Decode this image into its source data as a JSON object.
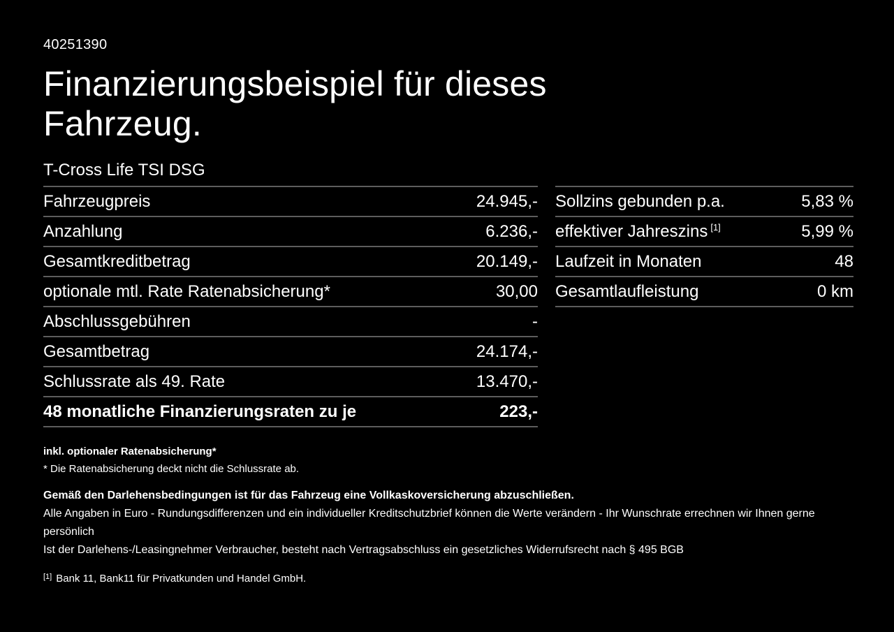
{
  "page": {
    "listing_id": "40251390",
    "title": "Finanzierungsbeispiel für dieses Fahrzeug.",
    "vehicle_model": "T-Cross Life TSI DSG"
  },
  "left_table": {
    "rows": [
      {
        "label": "Fahrzeugpreis",
        "value": "24.945,-"
      },
      {
        "label": "Anzahlung",
        "value": "6.236,-"
      },
      {
        "label": "Gesamtkreditbetrag",
        "value": "20.149,-"
      },
      {
        "label": "optionale mtl. Rate Ratenabsicherung*",
        "value": "30,00"
      },
      {
        "label": "Abschlussgebühren",
        "value": "-"
      },
      {
        "label": "Gesamtbetrag",
        "value": "24.174,-"
      },
      {
        "label": "Schlussrate als 49. Rate",
        "value": "13.470,-"
      },
      {
        "label": "48 monatliche Finanzierungsraten zu je",
        "value": "223,-"
      }
    ]
  },
  "right_table": {
    "rows": [
      {
        "label": "Sollzins gebunden p.a.",
        "value": "5,83 %"
      },
      {
        "label": "effektiver Jahreszins",
        "sup": "[1]",
        "value": "5,99 %"
      },
      {
        "label": "Laufzeit in Monaten",
        "value": "48"
      },
      {
        "label": "Gesamtlaufleistung",
        "value": "0 km"
      }
    ]
  },
  "footnotes": {
    "rate_protection_bold": "inkl. optionaler Ratenabsicherung*",
    "rate_protection_note": "* Die Ratenabsicherung deckt nicht die Schlussrate ab.",
    "insurance_requirement": "Gemäß den Darlehensbedingungen ist für das Fahrzeug eine Vollkaskoversicherung abzuschließen.",
    "disclaimer_line1": "Alle Angaben in Euro - Rundungsdifferenzen und ein individueller Kreditschutzbrief können die Werte verändern - Ihr Wunschrate errechnen wir Ihnen gerne persönlich",
    "disclaimer_line2": "Ist der Darlehens-/Leasingnehmer Verbraucher, besteht nach Vertragsabschluss ein gesetzliches Widerrufsrecht nach § 495 BGB",
    "bank_ref_marker": "[1]",
    "bank_ref_text": "Bank 11, Bank11 für Privatkunden und Handel GmbH."
  },
  "colors": {
    "background": "#000000",
    "text": "#ffffff",
    "rule": "#5d5d5d"
  }
}
